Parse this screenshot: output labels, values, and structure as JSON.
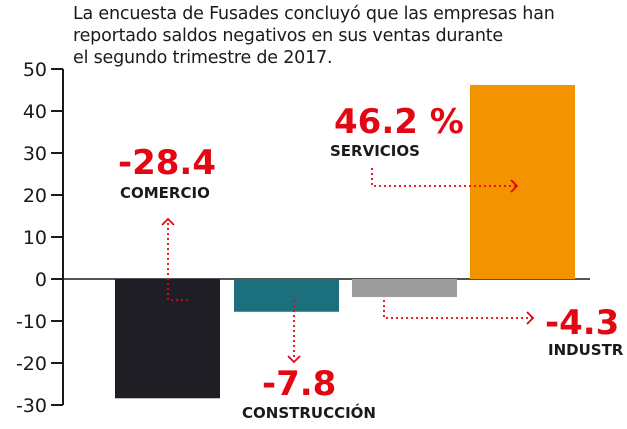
{
  "subtitle_lines": [
    "La encuesta de Fusades concluyó que las empresas han",
    "reportado saldos negativos en sus ventas durante",
    "el segundo trimestre de 2017."
  ],
  "colors": {
    "comercio": "#1f1e24",
    "construccion": "#1c6f7d",
    "industria": "#9d9d9d",
    "servicios": "#f29400",
    "value_label": "#e30613",
    "category_label": "#1a1a1a",
    "arrow": "#e30613",
    "axis": "#1a1a1a"
  },
  "chart_data": {
    "type": "bar",
    "title": "",
    "xlabel": "",
    "ylabel": "",
    "ylim": [
      -30,
      50
    ],
    "yticks": [
      50,
      40,
      30,
      20,
      10,
      0,
      -10,
      -20,
      -30
    ],
    "grid": false,
    "categories": [
      "COMERCIO",
      "CONSTRUCCIÓN",
      "INDUSTRIA",
      "SERVICIOS"
    ],
    "values": [
      -28.4,
      -7.8,
      -4.3,
      46.2
    ],
    "value_labels": [
      "-28.4",
      "-7.8",
      "-4.3",
      "46.2 %"
    ],
    "visible_category_labels": [
      "COMERCIO",
      "CONSTRUCCIÓN",
      "INDUSTR",
      "SERVICIOS"
    ]
  }
}
